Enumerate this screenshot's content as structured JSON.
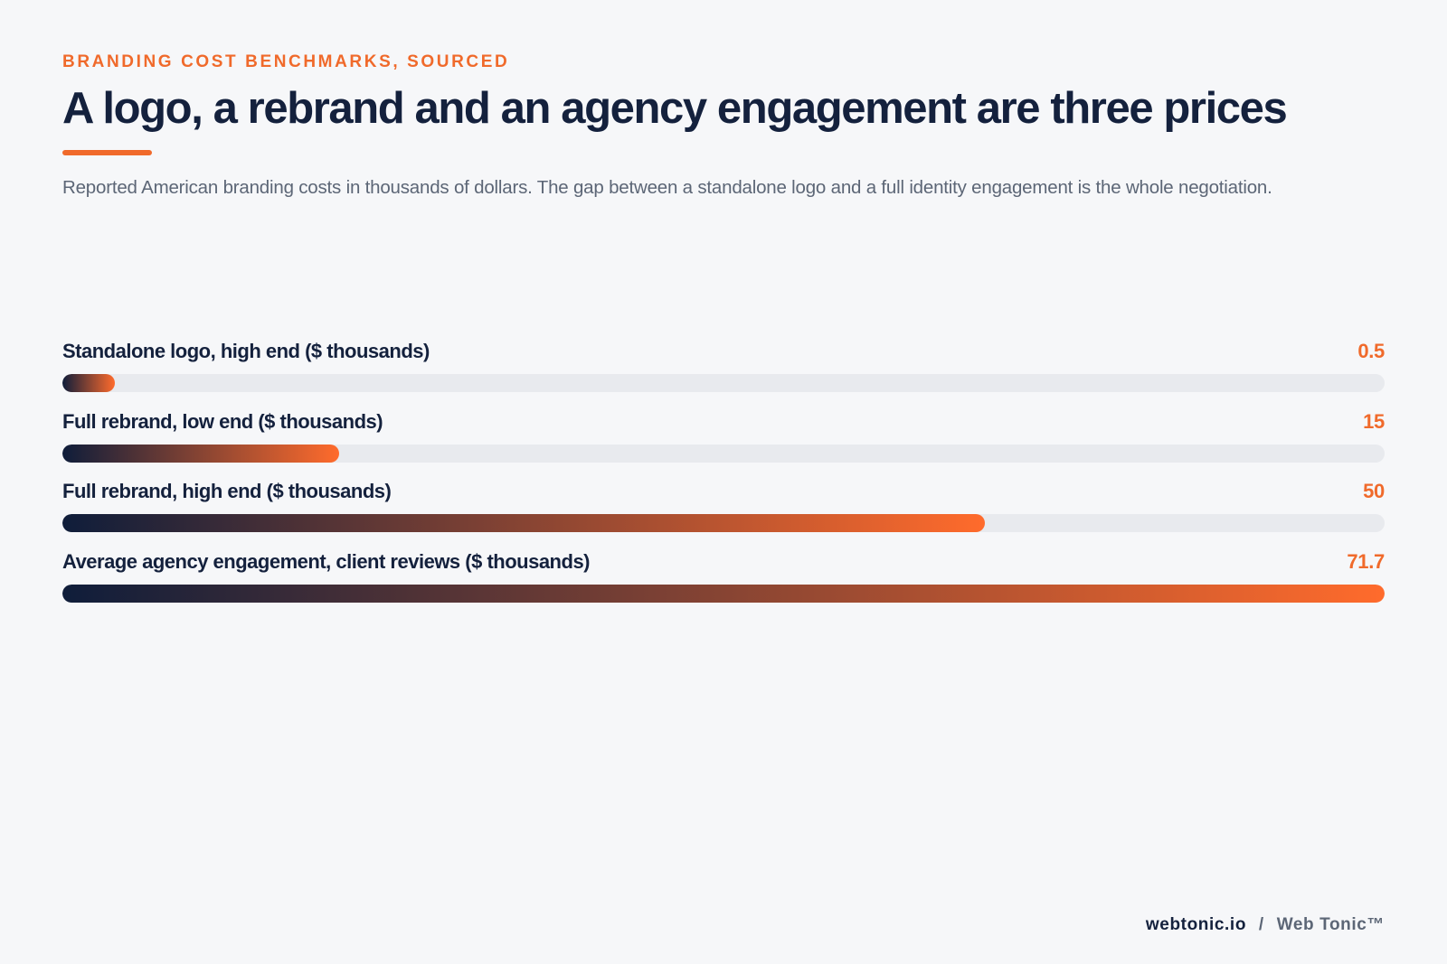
{
  "header": {
    "eyebrow": "BRANDING COST BENCHMARKS, SOURCED",
    "title": "A logo, a rebrand and an agency engagement are three prices",
    "subtitle": "Reported American branding costs in thousands of dollars. The gap between a standalone logo and a full identity engagement is the whole negotiation."
  },
  "footer": {
    "site": "webtonic.io",
    "separator": "/",
    "brand": "Web Tonic™"
  },
  "colors": {
    "accent": "#f06a2b",
    "navy": "#14213d",
    "track": "#e8eaee",
    "gradient_start": "#0f1d3a",
    "gradient_end": "#ff6b2c"
  },
  "chart_data": {
    "type": "bar",
    "orientation": "horizontal",
    "categories": [
      "Standalone logo, high end ($ thousands)",
      "Full rebrand, low end ($ thousands)",
      "Full rebrand, high end ($ thousands)",
      "Average agency engagement, client reviews ($ thousands)"
    ],
    "values": [
      0.5,
      15,
      50,
      71.7
    ],
    "value_labels": [
      "0.5",
      "15",
      "50",
      "71.7"
    ],
    "xlim": [
      0,
      71.7
    ],
    "grid": false,
    "legend": "none"
  }
}
